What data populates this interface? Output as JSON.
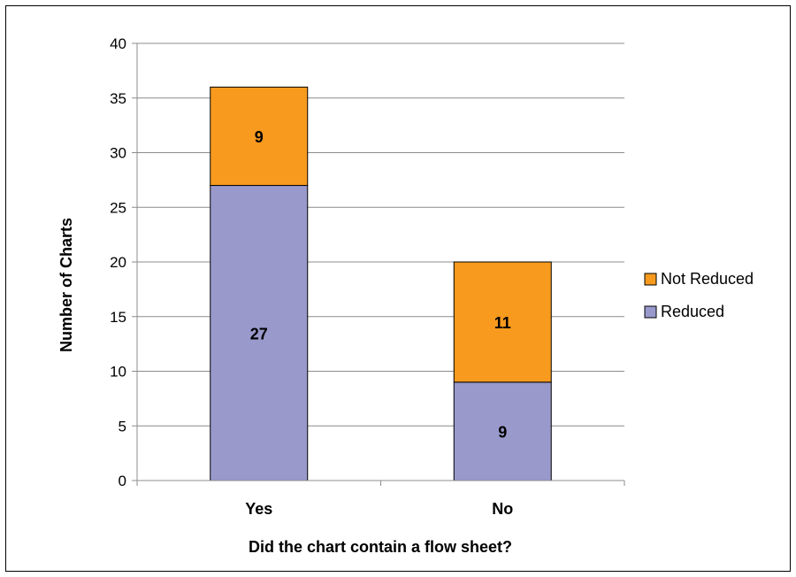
{
  "chart_data": {
    "type": "bar",
    "stacked": true,
    "categories": [
      "Yes",
      "No"
    ],
    "series": [
      {
        "name": "Reduced",
        "values": [
          27,
          9
        ],
        "color": "#9999cc"
      },
      {
        "name": "Not Reduced",
        "values": [
          9,
          11
        ],
        "color": "#f79a1e"
      }
    ],
    "xlabel": "Did the chart contain a flow sheet?",
    "ylabel": "Number of Charts",
    "ylim": [
      0,
      40
    ],
    "yticks": [
      0,
      5,
      10,
      15,
      20,
      25,
      30,
      35,
      40
    ],
    "grid": true,
    "legend_position": "right",
    "legend_order": [
      "Not Reduced",
      "Reduced"
    ],
    "data_labels": true
  }
}
